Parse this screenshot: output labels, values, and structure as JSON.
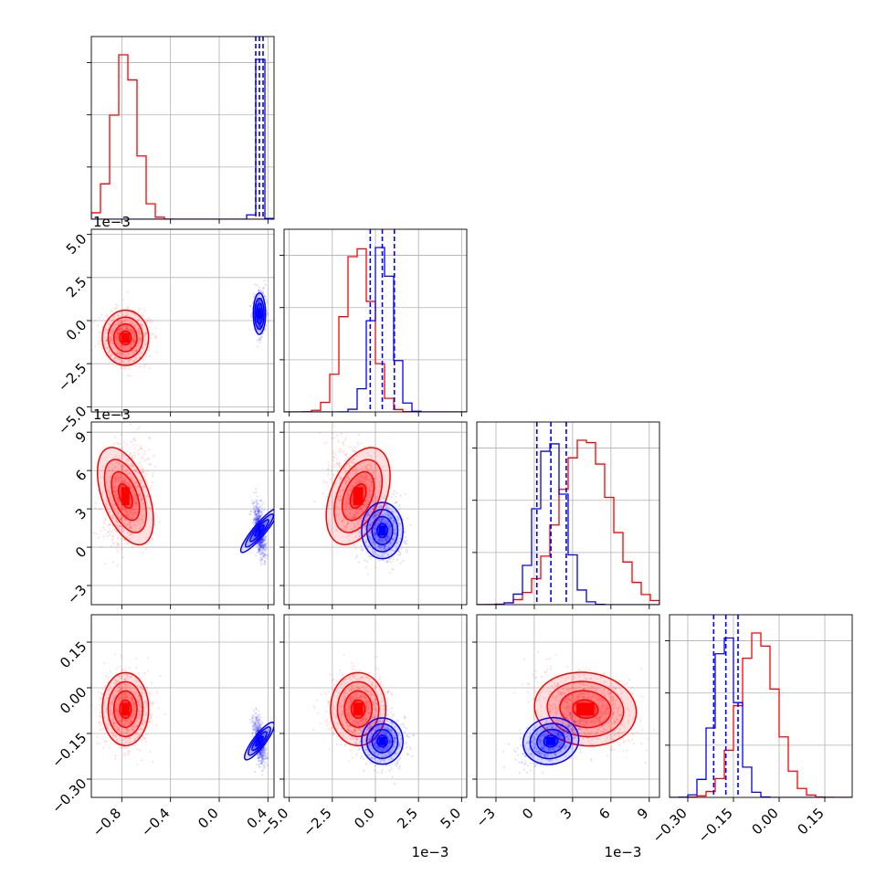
{
  "chart_data": {
    "type": "corner",
    "title": "",
    "parameters": [
      {
        "range": [
          -1.05,
          0.45
        ],
        "ticks": [
          -0.8,
          -0.4,
          0.0,
          0.4
        ],
        "tick_labels": [
          "−0.8",
          "−0.4",
          "0.0",
          "0.4"
        ],
        "offset_label": ""
      },
      {
        "range": [
          -0.0053,
          0.0053
        ],
        "ticks": [
          -0.005,
          -0.0025,
          0.0,
          0.0025,
          0.005
        ],
        "tick_labels": [
          "−5.0",
          "−2.5",
          "0.0",
          "2.5",
          "5.0"
        ],
        "offset_label": "1e−3"
      },
      {
        "range": [
          -0.0045,
          0.0098
        ],
        "ticks": [
          -0.003,
          0.0,
          0.003,
          0.006,
          0.009
        ],
        "tick_labels": [
          "−3",
          "0",
          "3",
          "6",
          "9"
        ],
        "offset_label": "1e−3"
      },
      {
        "range": [
          -0.36,
          0.24
        ],
        "ticks": [
          -0.3,
          -0.15,
          0.0,
          0.15
        ],
        "tick_labels": [
          "−0.30",
          "−0.15",
          "0.00",
          "0.15"
        ],
        "offset_label": ""
      }
    ],
    "series": [
      {
        "color": "#ff0000",
        "means": [
          -0.77,
          -0.001,
          0.004,
          -0.07
        ],
        "stds": [
          0.095,
          0.0008,
          0.002,
          0.06
        ],
        "quantile_lines": []
      },
      {
        "color": "#0000ff",
        "means": [
          0.33,
          0.0004,
          0.0013,
          -0.175
        ],
        "stds": [
          0.025,
          0.0006,
          0.0011,
          0.038
        ],
        "quantile_lines": [
          [
            0.3,
            0.33,
            0.36
          ],
          [
            -0.0003,
            0.0004,
            0.0011
          ],
          [
            0.0002,
            0.0013,
            0.0025
          ],
          [
            -0.215,
            -0.175,
            -0.135
          ]
        ]
      }
    ],
    "grid": true,
    "legend": "none"
  }
}
